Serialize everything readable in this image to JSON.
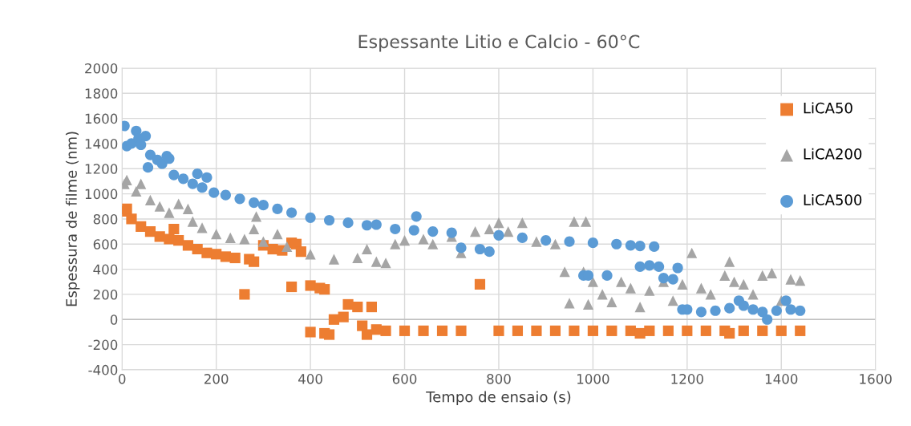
{
  "chart_data": {
    "type": "scatter",
    "title": "Espessante Litio e Calcio - 60°C",
    "xlabel": "Tempo de ensaio (s)",
    "ylabel": "Espessura de filme (nm)",
    "xlim": [
      0,
      1600
    ],
    "xticks": [
      0,
      200,
      400,
      600,
      800,
      1000,
      1200,
      1400,
      1600
    ],
    "ylim": [
      -400,
      2000
    ],
    "yticks": [
      -400,
      -200,
      0,
      200,
      400,
      600,
      800,
      1000,
      1200,
      1400,
      1600,
      1800,
      2000
    ],
    "grid": true,
    "legend": "right",
    "series": [
      {
        "name": "LiCA50",
        "color": "#ed7d31",
        "marker": "square",
        "x": [
          0,
          10,
          20,
          40,
          60,
          80,
          100,
          110,
          120,
          140,
          160,
          180,
          200,
          220,
          240,
          260,
          270,
          280,
          300,
          320,
          340,
          360,
          370,
          380,
          360,
          400,
          420,
          430,
          400,
          430,
          440,
          450,
          470,
          480,
          500,
          510,
          520,
          530,
          540,
          560,
          600,
          640,
          680,
          720,
          760,
          800,
          840,
          880,
          920,
          960,
          1000,
          1040,
          1080,
          1100,
          1120,
          1160,
          1200,
          1240,
          1280,
          1290,
          1320,
          1360,
          1400,
          1440
        ],
        "values": [
          860,
          880,
          800,
          740,
          700,
          660,
          640,
          720,
          630,
          590,
          560,
          530,
          520,
          500,
          490,
          200,
          480,
          460,
          590,
          560,
          550,
          610,
          600,
          540,
          260,
          270,
          250,
          240,
          -100,
          -110,
          -120,
          0,
          20,
          120,
          100,
          -50,
          -120,
          100,
          -80,
          -90,
          -90,
          -90,
          -90,
          -90,
          280,
          -90,
          -90,
          -90,
          -90,
          -90,
          -90,
          -90,
          -90,
          -110,
          -90,
          -90,
          -90,
          -90,
          -90,
          -110,
          -90,
          -90,
          -90,
          -90
        ]
      },
      {
        "name": "LiCA200",
        "color": "#a5a5a5",
        "marker": "triangle",
        "x": [
          5,
          10,
          30,
          40,
          60,
          80,
          100,
          120,
          140,
          150,
          170,
          200,
          230,
          260,
          280,
          285,
          300,
          330,
          350,
          400,
          450,
          500,
          520,
          540,
          560,
          580,
          600,
          640,
          660,
          700,
          720,
          750,
          780,
          800,
          820,
          850,
          880,
          920,
          940,
          950,
          960,
          980,
          985,
          990,
          1000,
          1020,
          1040,
          1060,
          1080,
          1100,
          1120,
          1150,
          1170,
          1190,
          1210,
          1230,
          1250,
          1280,
          1290,
          1300,
          1320,
          1340,
          1360,
          1380,
          1400,
          1420,
          1440
        ],
        "values": [
          1080,
          1110,
          1020,
          1080,
          950,
          900,
          850,
          920,
          880,
          780,
          730,
          680,
          650,
          640,
          720,
          820,
          620,
          680,
          580,
          520,
          480,
          490,
          560,
          460,
          450,
          600,
          630,
          640,
          600,
          660,
          530,
          700,
          720,
          770,
          700,
          770,
          620,
          600,
          380,
          130,
          780,
          380,
          780,
          120,
          300,
          200,
          140,
          300,
          250,
          100,
          230,
          300,
          150,
          280,
          530,
          250,
          200,
          350,
          460,
          300,
          280,
          200,
          350,
          370,
          150,
          320,
          310
        ]
      },
      {
        "name": "LiCA500",
        "color": "#5b9bd5",
        "marker": "circle",
        "x": [
          5,
          10,
          20,
          30,
          35,
          40,
          50,
          55,
          60,
          75,
          85,
          95,
          100,
          110,
          130,
          150,
          160,
          170,
          180,
          195,
          220,
          250,
          280,
          300,
          330,
          360,
          400,
          440,
          480,
          520,
          540,
          580,
          620,
          625,
          660,
          700,
          720,
          760,
          780,
          800,
          850,
          900,
          950,
          980,
          990,
          1000,
          1030,
          1050,
          1080,
          1100,
          1100,
          1120,
          1130,
          1140,
          1150,
          1170,
          1180,
          1190,
          1200,
          1230,
          1260,
          1290,
          1310,
          1320,
          1340,
          1360,
          1370,
          1390,
          1410,
          1420,
          1440
        ],
        "values": [
          1540,
          1380,
          1400,
          1500,
          1440,
          1390,
          1460,
          1210,
          1310,
          1270,
          1240,
          1300,
          1280,
          1150,
          1120,
          1080,
          1160,
          1050,
          1130,
          1010,
          990,
          960,
          930,
          910,
          880,
          850,
          810,
          790,
          770,
          750,
          755,
          720,
          710,
          820,
          700,
          690,
          570,
          560,
          540,
          670,
          650,
          630,
          620,
          350,
          350,
          610,
          350,
          600,
          590,
          585,
          420,
          430,
          580,
          420,
          330,
          320,
          410,
          80,
          80,
          60,
          70,
          90,
          150,
          110,
          80,
          60,
          0,
          70,
          150,
          80,
          70
        ]
      }
    ]
  }
}
